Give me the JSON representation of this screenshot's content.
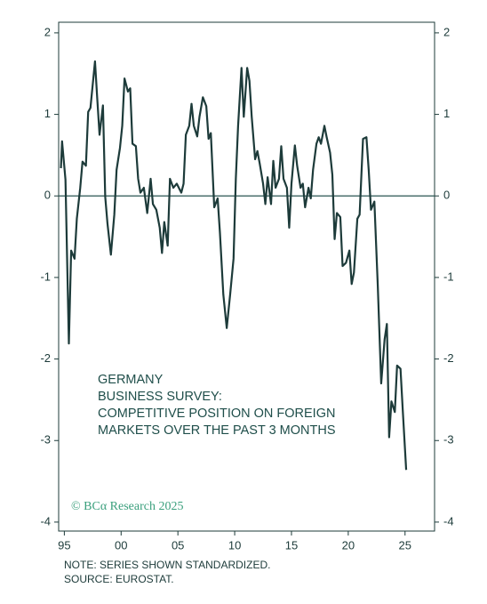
{
  "chart_data": {
    "type": "line",
    "annotation": [
      "GERMANY",
      "BUSINESS SURVEY:",
      "COMPETITIVE POSITION ON FOREIGN",
      "MARKETS OVER THE PAST 3 MONTHS"
    ],
    "copyright": "© BCα Research 2025",
    "notes": [
      "NOTE: SERIES SHOWN STANDARDIZED.",
      "SOURCE: EUROSTAT."
    ],
    "x": [
      1994.7,
      1994.8,
      1995.1,
      1995.4,
      1995.6,
      1995.9,
      1996.1,
      1996.4,
      1996.6,
      1996.9,
      1997.1,
      1997.3,
      1997.7,
      1997.9,
      1998.1,
      1998.4,
      1998.6,
      1998.8,
      1999.1,
      1999.4,
      1999.6,
      1999.9,
      2000.1,
      2000.3,
      2000.6,
      2000.8,
      2001.0,
      2001.3,
      2001.5,
      2001.7,
      2002.0,
      2002.3,
      2002.6,
      2002.8,
      2003.1,
      2003.4,
      2003.6,
      2003.8,
      2004.1,
      2004.3,
      2004.6,
      2004.9,
      2005.3,
      2005.5,
      2005.7,
      2006.0,
      2006.2,
      2006.4,
      2006.7,
      2006.9,
      2007.2,
      2007.5,
      2007.7,
      2007.9,
      2008.2,
      2008.5,
      2008.7,
      2009.0,
      2009.3,
      2009.6,
      2009.9,
      2010.1,
      2010.3,
      2010.6,
      2010.8,
      2011.1,
      2011.3,
      2011.5,
      2011.8,
      2012.0,
      2012.2,
      2012.5,
      2012.7,
      2012.9,
      2013.2,
      2013.4,
      2013.6,
      2013.9,
      2014.1,
      2014.3,
      2014.6,
      2014.8,
      2015.0,
      2015.3,
      2015.5,
      2015.8,
      2016.0,
      2016.2,
      2016.5,
      2016.7,
      2016.9,
      2017.2,
      2017.4,
      2017.6,
      2017.9,
      2018.1,
      2018.4,
      2018.6,
      2018.8,
      2019.0,
      2019.3,
      2019.5,
      2019.8,
      2020.1,
      2020.3,
      2020.5,
      2020.8,
      2021.0,
      2021.3,
      2021.6,
      2021.8,
      2022.0,
      2022.3,
      2022.6,
      2022.9,
      2023.2,
      2023.4,
      2023.6,
      2023.8,
      2024.1,
      2024.3,
      2024.6,
      2024.8,
      2025.1
    ],
    "series": [
      {
        "color": "#1d3b3a",
        "values": [
          0.34,
          0.67,
          0.2,
          -1.81,
          -0.67,
          -0.77,
          -0.28,
          0.1,
          0.42,
          0.37,
          1.03,
          1.08,
          1.65,
          1.19,
          0.75,
          1.11,
          -0.01,
          -0.34,
          -0.72,
          -0.23,
          0.32,
          0.59,
          0.86,
          1.44,
          1.28,
          1.32,
          0.64,
          0.61,
          0.21,
          0.04,
          0.1,
          -0.21,
          0.21,
          -0.1,
          -0.17,
          -0.39,
          -0.7,
          -0.32,
          -0.61,
          0.21,
          0.1,
          0.15,
          0.04,
          0.15,
          0.75,
          0.86,
          1.13,
          0.86,
          0.73,
          0.97,
          1.21,
          1.1,
          0.7,
          0.77,
          -0.14,
          -0.03,
          -0.45,
          -1.21,
          -1.62,
          -1.21,
          -0.77,
          0.21,
          0.86,
          1.57,
          0.97,
          1.57,
          1.41,
          0.97,
          0.45,
          0.55,
          0.4,
          0.15,
          -0.1,
          0.23,
          -0.1,
          0.43,
          0.1,
          0.21,
          0.61,
          0.21,
          0.1,
          -0.39,
          0.15,
          0.62,
          0.37,
          0.1,
          0.15,
          -0.14,
          0.1,
          -0.03,
          0.32,
          0.64,
          0.72,
          0.64,
          0.86,
          0.72,
          0.53,
          0.26,
          -0.53,
          -0.21,
          -0.26,
          -0.86,
          -0.82,
          -0.67,
          -1.08,
          -0.94,
          -0.28,
          -0.23,
          0.7,
          0.72,
          0.32,
          -0.17,
          -0.07,
          -1.1,
          -2.3,
          -1.76,
          -1.57,
          -2.96,
          -2.52,
          -2.65,
          -2.08,
          -2.12,
          -2.63,
          -3.36
        ]
      }
    ],
    "xlim": [
      1994.5,
      2027.6
    ],
    "xticks": [
      {
        "value": 1995,
        "label": "95"
      },
      {
        "value": 2000,
        "label": "00"
      },
      {
        "value": 2005,
        "label": "05"
      },
      {
        "value": 2010,
        "label": "10"
      },
      {
        "value": 2015,
        "label": "15"
      },
      {
        "value": 2020,
        "label": "20"
      },
      {
        "value": 2025,
        "label": "25"
      }
    ],
    "ylim": [
      -4.11,
      2.13
    ],
    "yticks": [
      2,
      1,
      0,
      -1,
      -2,
      -3,
      -4
    ],
    "y2lim": [
      -4.11,
      2.13
    ],
    "y2ticks": [
      2,
      1,
      0,
      -1,
      -2,
      -3,
      -4
    ],
    "zero_line": true
  }
}
